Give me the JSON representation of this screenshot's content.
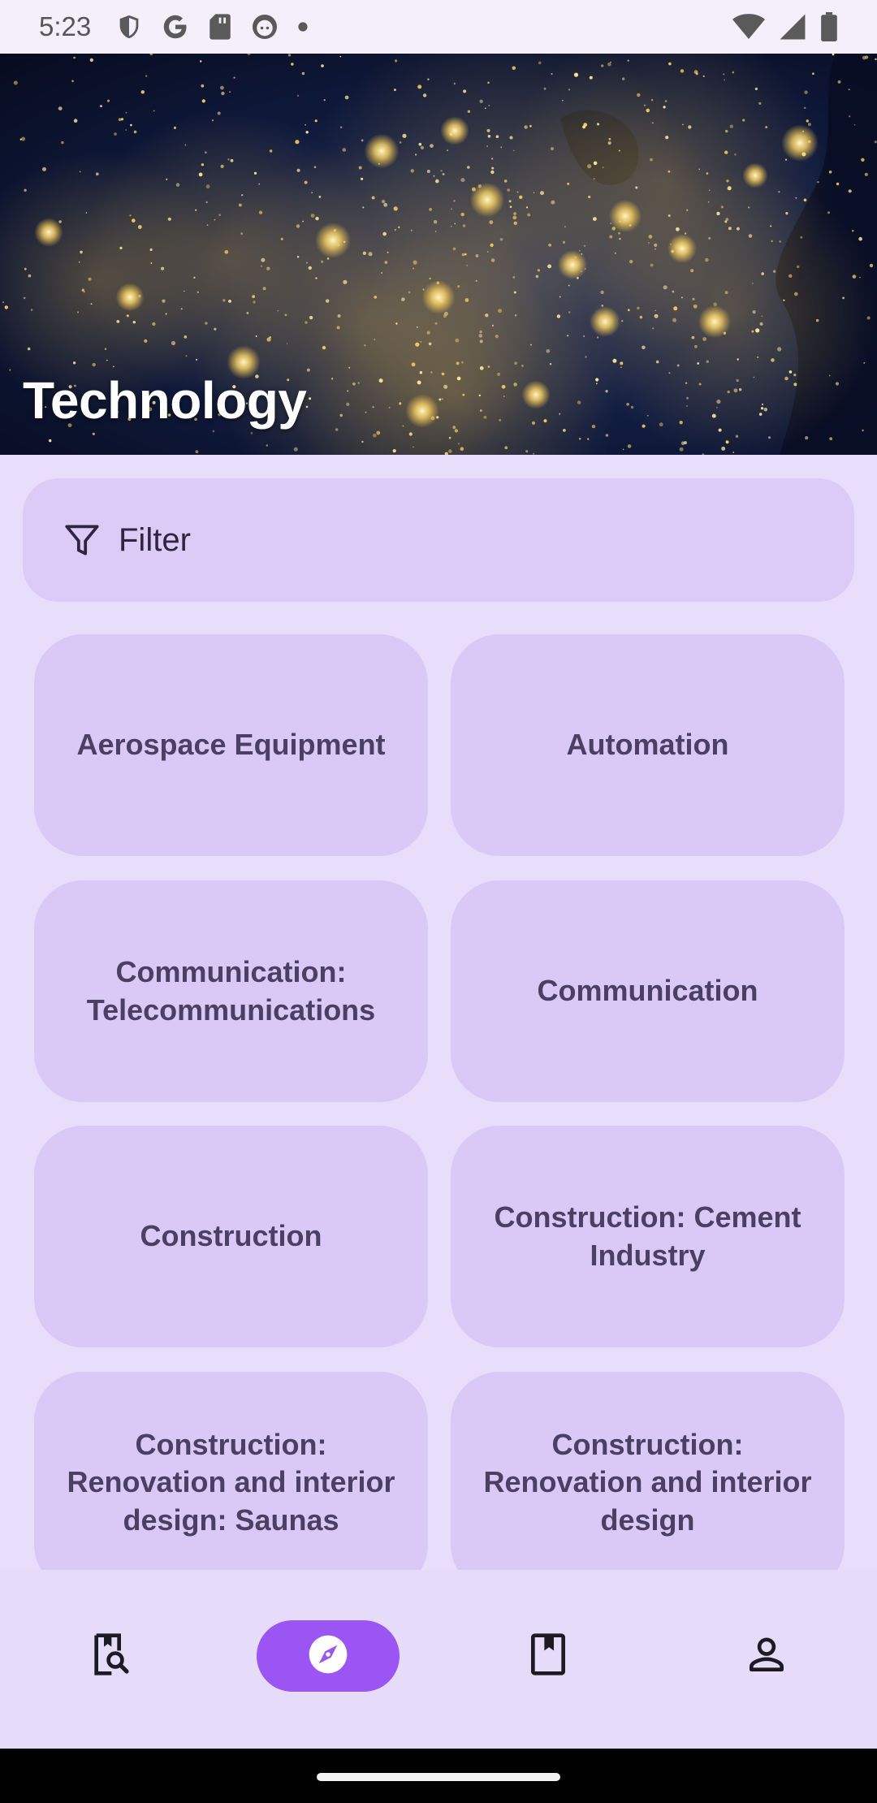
{
  "status_bar": {
    "time": "5:23"
  },
  "hero": {
    "title": "Technology"
  },
  "filter": {
    "label": "Filter"
  },
  "categories": [
    "Aerospace Equipment",
    "Automation",
    "Communication: Telecommunications",
    "Communication",
    "Construction",
    "Construction: Cement Industry",
    "Construction: Renovation and interior design: Saunas",
    "Construction: Renovation and interior design"
  ],
  "bottom_nav": {
    "items": [
      {
        "icon": "book-search-icon",
        "active": false
      },
      {
        "icon": "compass-icon",
        "active": true
      },
      {
        "icon": "bookmark-icon",
        "active": false
      },
      {
        "icon": "person-icon",
        "active": false
      }
    ]
  },
  "colors": {
    "background": "#e8ddfa",
    "tile": "#dac9f7",
    "accent": "#9b55f2",
    "tile_text": "#4b3f63"
  }
}
